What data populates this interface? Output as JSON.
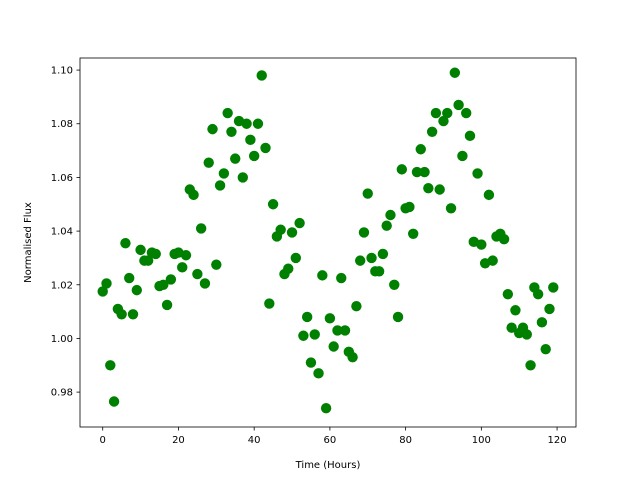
{
  "chart_data": {
    "type": "scatter",
    "title": "",
    "xlabel": "Time (Hours)",
    "ylabel": "Normalised Flux",
    "xlim": [
      -6,
      125
    ],
    "ylim": [
      0.967,
      1.1045
    ],
    "xticks": [
      0,
      20,
      40,
      60,
      80,
      100,
      120
    ],
    "yticks": [
      0.98,
      1.0,
      1.02,
      1.04,
      1.06,
      1.08,
      1.1
    ],
    "ytick_labels": [
      "0.98",
      "1.00",
      "1.02",
      "1.04",
      "1.06",
      "1.08",
      "1.10"
    ],
    "grid": false,
    "marker_color": "#008000",
    "x": [
      0,
      1,
      2,
      3,
      4,
      5,
      6,
      7,
      8,
      9,
      10,
      11,
      12,
      13,
      14,
      15,
      16,
      17,
      18,
      19,
      20,
      21,
      22,
      23,
      24,
      25,
      26,
      27,
      28,
      29,
      30,
      31,
      32,
      33,
      34,
      35,
      36,
      37,
      38,
      39,
      40,
      41,
      42,
      43,
      44,
      45,
      46,
      47,
      48,
      49,
      50,
      51,
      52,
      53,
      54,
      55,
      56,
      57,
      58,
      59,
      60,
      61,
      62,
      63,
      64,
      65,
      66,
      67,
      68,
      69,
      70,
      71,
      72,
      73,
      74,
      75,
      76,
      77,
      78,
      79,
      80,
      81,
      82,
      83,
      84,
      85,
      86,
      87,
      88,
      89,
      90,
      91,
      92,
      93,
      94,
      95,
      96,
      97,
      98,
      99,
      100,
      101,
      102,
      103,
      104,
      105,
      106,
      107,
      108,
      109,
      110,
      111,
      112,
      113,
      114,
      115,
      116,
      117,
      118,
      119
    ],
    "y": [
      1.0175,
      1.0205,
      0.99,
      0.9765,
      1.011,
      1.009,
      1.0355,
      1.0225,
      1.009,
      1.018,
      1.033,
      1.029,
      1.029,
      1.032,
      1.0315,
      1.0195,
      1.02,
      1.0125,
      1.022,
      1.0315,
      1.032,
      1.0265,
      1.031,
      1.0555,
      1.0535,
      1.024,
      1.041,
      1.0205,
      1.0655,
      1.078,
      1.0275,
      1.057,
      1.0615,
      1.084,
      1.077,
      1.067,
      1.081,
      1.06,
      1.08,
      1.074,
      1.068,
      1.08,
      1.098,
      1.071,
      1.013,
      1.05,
      1.038,
      1.0405,
      1.024,
      1.026,
      1.0395,
      1.03,
      1.043,
      1.001,
      1.008,
      0.991,
      1.0015,
      0.987,
      1.0235,
      0.974,
      1.0075,
      0.997,
      1.003,
      1.0225,
      1.003,
      0.995,
      0.993,
      1.012,
      1.029,
      1.0395,
      1.054,
      1.03,
      1.025,
      1.025,
      1.0315,
      1.042,
      1.046,
      1.02,
      1.008,
      1.063,
      1.0485,
      1.049,
      1.039,
      1.062,
      1.0705,
      1.062,
      1.056,
      1.077,
      1.084,
      1.0555,
      1.081,
      1.084,
      1.0485,
      1.099,
      1.087,
      1.068,
      1.084,
      1.0755,
      1.036,
      1.0615,
      1.035,
      1.028,
      1.0535,
      1.029,
      1.038,
      1.039,
      1.037,
      1.0165,
      1.004,
      1.0105,
      1.002,
      1.004,
      1.0015,
      0.99,
      1.019,
      1.0165,
      1.006,
      0.996,
      1.011,
      1.019
    ]
  }
}
